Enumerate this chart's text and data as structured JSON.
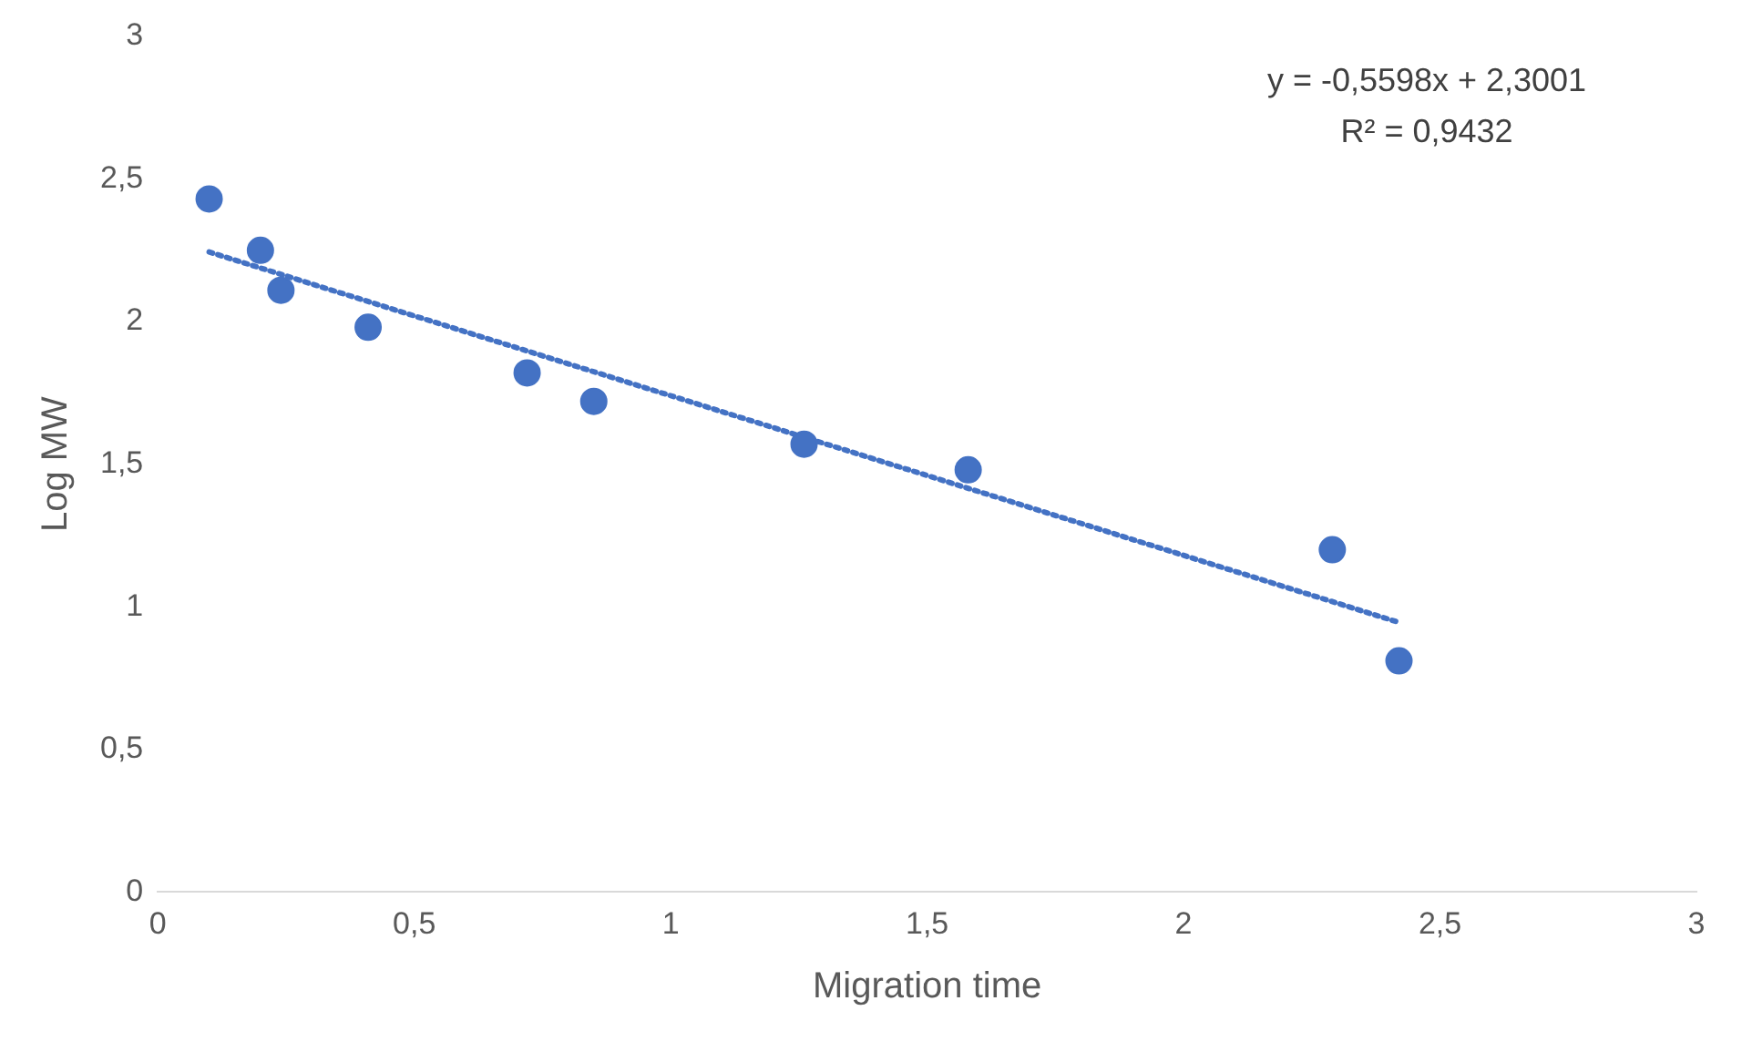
{
  "chart_data": {
    "type": "scatter",
    "xlabel": "Migration time",
    "ylabel": "Log MW",
    "xlim": [
      0,
      3
    ],
    "xticks": [
      0,
      {
        "value": 0.5,
        "label": "0,5"
      },
      1,
      {
        "value": 1.5,
        "label": "1,5"
      },
      2,
      {
        "value": 2.5,
        "label": "2,5"
      },
      3
    ],
    "ylim": [
      0,
      3
    ],
    "yticks": [
      0,
      {
        "value": 0.5,
        "label": "0,5"
      },
      1,
      {
        "value": 1.5,
        "label": "1,5"
      },
      2,
      {
        "value": 2.5,
        "label": "2,5"
      },
      3
    ],
    "grid": false,
    "legend": false,
    "series": [
      {
        "color": "#4472c4",
        "marker": "circle",
        "x": [
          0.1,
          0.2,
          0.24,
          0.41,
          0.72,
          0.85,
          1.26,
          1.58,
          2.29,
          2.42
        ],
        "values": [
          2.43,
          2.25,
          2.11,
          1.98,
          1.82,
          1.72,
          1.57,
          1.48,
          1.2,
          0.81
        ]
      },
      {
        "type": "line",
        "color": "#4472c4",
        "marker": "none",
        "line_style": "dotted",
        "x": [
          0.1,
          2.42
        ],
        "values": [
          2.244,
          0.945
        ]
      }
    ],
    "annotations": [
      "y = -0,5598x + 2,3001",
      "R² = 0,9432"
    ]
  }
}
